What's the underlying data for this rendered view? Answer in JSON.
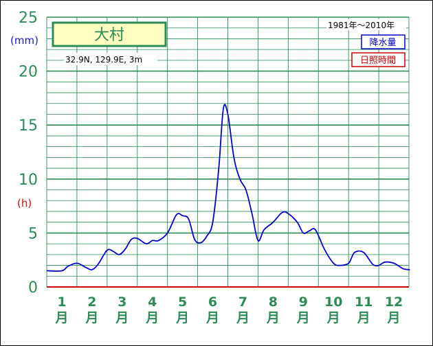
{
  "station": {
    "name": "大村",
    "location": "32.9N,  129.9E,  3m"
  },
  "period": "1981年～2010年",
  "legend": {
    "precip_label": "降水量",
    "sunshine_label": "日照時間",
    "precip_color": "#0000cc",
    "sunshine_color": "#cc0000"
  },
  "colors": {
    "grid": "#2e8b57",
    "axis_text": "#2e8b57",
    "station_box_bg": "#ffffc0"
  },
  "chart_data": {
    "type": "line",
    "ylabel_left": "(mm)",
    "ylabel_left_secondary": "(h)",
    "ylim": [
      0,
      25
    ],
    "yticks": [
      "0",
      "5",
      "10",
      "15",
      "20",
      "25"
    ],
    "month_numbers": [
      "1",
      "2",
      "3",
      "4",
      "5",
      "6",
      "7",
      "8",
      "9",
      "10",
      "11",
      "12"
    ],
    "month_suffix": "月",
    "grid": true,
    "series": [
      {
        "x": [
          1.0,
          1.2,
          1.5,
          1.8,
          2.0,
          2.2,
          2.5,
          2.7,
          2.9,
          3.1,
          3.3,
          3.5,
          3.8,
          4.0,
          4.2,
          4.5,
          4.8,
          5.0,
          5.2,
          5.4,
          5.6,
          5.8,
          6.0,
          6.2,
          6.35,
          6.5,
          6.7,
          6.9,
          7.1,
          7.3,
          7.5,
          7.7,
          8.0,
          8.3,
          8.5,
          8.8,
          9.0,
          9.2,
          9.4,
          9.7,
          10.0,
          10.2,
          10.5,
          10.7,
          11.0,
          11.3,
          11.5,
          11.7,
          12.0,
          12.3,
          12.5
        ],
        "values": [
          1.5,
          1.9,
          2.2,
          1.8,
          1.6,
          2.1,
          3.4,
          3.3,
          3.0,
          3.5,
          4.4,
          4.5,
          4.0,
          4.3,
          4.3,
          5.0,
          6.7,
          6.6,
          6.3,
          4.4,
          4.1,
          4.7,
          6.0,
          11.0,
          16.5,
          16.0,
          12.0,
          10.0,
          9.0,
          6.8,
          4.3,
          5.3,
          6.0,
          6.9,
          6.8,
          6.0,
          5.0,
          5.2,
          5.3,
          3.5,
          2.2,
          2.0,
          2.2,
          3.2,
          3.2,
          2.1,
          2.0,
          2.3,
          2.2,
          1.7,
          1.6
        ]
      }
    ]
  }
}
